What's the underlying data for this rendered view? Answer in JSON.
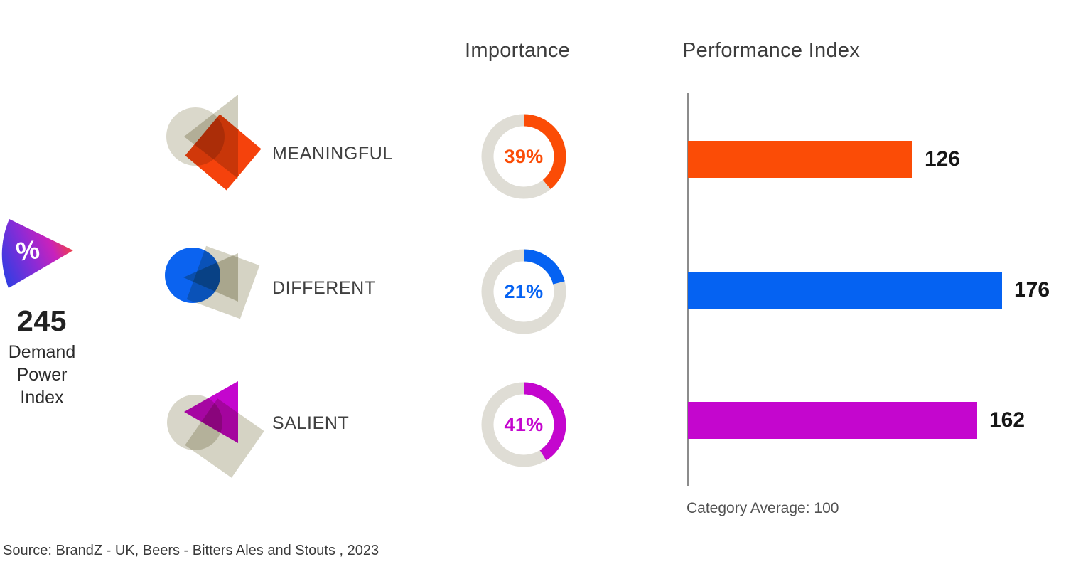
{
  "demand_power": {
    "value": "245",
    "label_lines": {
      "0": "Demand",
      "1": "Power",
      "2": "Index"
    },
    "icon": "percent-wedge-icon"
  },
  "columns": {
    "importance_header": "Importance",
    "performance_header": "Performance Index",
    "category_average": "Category Average: 100"
  },
  "rows": [
    {
      "label": "MEANINGFUL",
      "importance": 39,
      "importance_label": "39%",
      "performance": 126,
      "color": "#FB4C06"
    },
    {
      "label": "DIFFERENT",
      "importance": 21,
      "importance_label": "21%",
      "performance": 176,
      "color": "#0562F2"
    },
    {
      "label": "SALIENT",
      "importance": 41,
      "importance_label": "41%",
      "performance": 162,
      "color": "#C406CE"
    }
  ],
  "source": "Source: BrandZ - UK, Beers - Bitters Ales and Stouts , 2023",
  "colors": {
    "donut_track": "#DFDDD5",
    "beige_shape": "#D9D7C9",
    "axis": "#8C8C8C"
  },
  "chart_data": [
    {
      "type": "pie",
      "title": "Importance",
      "note": "three donut gauges, one per brand attribute, arc starts at 12 o'clock clockwise",
      "categories": [
        "MEANINGFUL",
        "DIFFERENT",
        "SALIENT"
      ],
      "values": [
        39,
        21,
        41
      ],
      "unit": "%",
      "colors": [
        "#FB4C06",
        "#0562F2",
        "#C406CE"
      ]
    },
    {
      "type": "bar",
      "title": "Performance Index",
      "orientation": "horizontal",
      "categories": [
        "MEANINGFUL",
        "DIFFERENT",
        "SALIENT"
      ],
      "values": [
        126,
        176,
        162
      ],
      "data_labels": [
        "126",
        "176",
        "162"
      ],
      "colors": [
        "#FB4C06",
        "#0562F2",
        "#C406CE"
      ],
      "annotation": "Category Average: 100",
      "xlim": [
        0,
        190
      ],
      "grid": false,
      "legend": false
    },
    {
      "type": "table",
      "title": "Demand Power Index",
      "headline_value": 245,
      "source": "Source: BrandZ - UK, Beers - Bitters Ales and Stouts , 2023"
    }
  ]
}
